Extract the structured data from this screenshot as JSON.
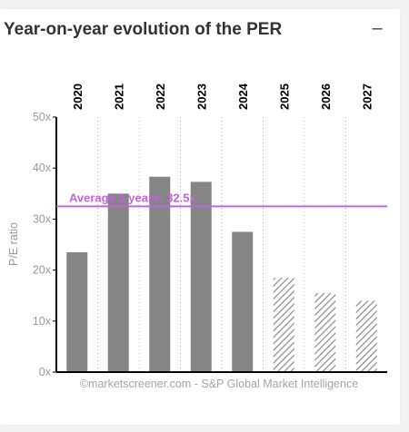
{
  "header": {
    "title": "Year-on-year evolution of the PER",
    "collapse_symbol": "–"
  },
  "chart_data": {
    "type": "bar",
    "categories": [
      "2020",
      "2021",
      "2022",
      "2023",
      "2024",
      "2025",
      "2026",
      "2027"
    ],
    "values": [
      23.5,
      35,
      38.3,
      37.3,
      27.5,
      18.5,
      15.5,
      14
    ],
    "estimated": [
      false,
      false,
      false,
      false,
      false,
      true,
      true,
      true
    ],
    "ylabel": "P/E ratio",
    "ylim": [
      0,
      50
    ],
    "yticks": [
      0,
      10,
      20,
      30,
      40,
      50
    ],
    "ytick_suffix": "x",
    "reference_line": {
      "value": 32.5,
      "label": "Average 5 years: 32.5x"
    },
    "source": "©marketscreener.com - S&P Global Market Intelligence",
    "colors": {
      "bar": "#858585",
      "estimate_hatch": "#8a8a8a",
      "average_line": "#c363e0",
      "axis": "#000000",
      "grid": "#bbbbbb",
      "tick_text": "#9a9a9a",
      "category_text": "#000000"
    },
    "grid": "vertical dotted"
  }
}
